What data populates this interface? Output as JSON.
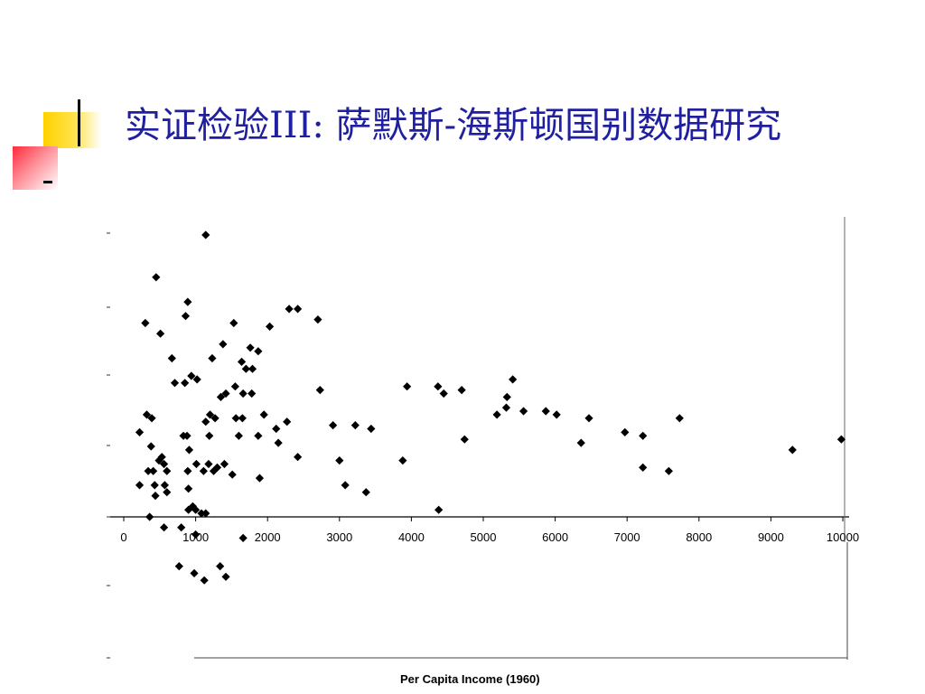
{
  "slide": {
    "title": "实证检验III: 萨默斯-海斯顿国别数据研究"
  },
  "chart_data": {
    "type": "scatter",
    "title": "",
    "xlabel": "Per Capita Income (1960)",
    "ylabel": "",
    "xlim": [
      0,
      10000
    ],
    "x_ticks": [
      0,
      1000,
      2000,
      3000,
      4000,
      5000,
      6000,
      7000,
      8000,
      9000,
      10000
    ],
    "x_tick_labels": [
      "0",
      "1000",
      "2000",
      "3000",
      "4000",
      "5000",
      "6000",
      "7000",
      "8000",
      "9000",
      "10000"
    ],
    "grid": false,
    "marker": "diamond",
    "points": [
      [
        1140,
        8.0
      ],
      [
        450,
        6.8
      ],
      [
        890,
        6.1
      ],
      [
        860,
        5.7
      ],
      [
        300,
        5.5
      ],
      [
        510,
        5.2
      ],
      [
        670,
        4.5
      ],
      [
        940,
        4.0
      ],
      [
        1020,
        3.9
      ],
      [
        710,
        3.8
      ],
      [
        850,
        3.8
      ],
      [
        1230,
        4.5
      ],
      [
        1380,
        4.9
      ],
      [
        1530,
        5.5
      ],
      [
        1640,
        4.4
      ],
      [
        1700,
        4.2
      ],
      [
        1790,
        4.2
      ],
      [
        1760,
        4.8
      ],
      [
        1870,
        4.7
      ],
      [
        2030,
        5.4
      ],
      [
        2300,
        5.9
      ],
      [
        2420,
        5.9
      ],
      [
        2700,
        5.6
      ],
      [
        1550,
        3.7
      ],
      [
        1350,
        3.4
      ],
      [
        1420,
        3.5
      ],
      [
        1660,
        3.5
      ],
      [
        1780,
        3.5
      ],
      [
        1560,
        2.8
      ],
      [
        1650,
        2.8
      ],
      [
        1200,
        2.9
      ],
      [
        1950,
        2.9
      ],
      [
        320,
        2.9
      ],
      [
        390,
        2.8
      ],
      [
        220,
        2.4
      ],
      [
        1140,
        2.7
      ],
      [
        1190,
        2.3
      ],
      [
        1270,
        2.8
      ],
      [
        1600,
        2.3
      ],
      [
        1870,
        2.3
      ],
      [
        2120,
        2.5
      ],
      [
        2150,
        2.1
      ],
      [
        2270,
        2.7
      ],
      [
        2420,
        1.7
      ],
      [
        1300,
        1.4
      ],
      [
        1400,
        1.5
      ],
      [
        1180,
        1.5
      ],
      [
        1110,
        1.3
      ],
      [
        910,
        1.9
      ],
      [
        830,
        2.3
      ],
      [
        880,
        2.3
      ],
      [
        380,
        2.0
      ],
      [
        490,
        1.6
      ],
      [
        560,
        1.5
      ],
      [
        600,
        1.3
      ],
      [
        340,
        1.3
      ],
      [
        410,
        1.3
      ],
      [
        530,
        1.7
      ],
      [
        1010,
        1.5
      ],
      [
        890,
        1.3
      ],
      [
        220,
        0.9
      ],
      [
        430,
        0.9
      ],
      [
        570,
        0.9
      ],
      [
        600,
        0.7
      ],
      [
        440,
        0.6
      ],
      [
        900,
        0.8
      ],
      [
        960,
        0.3
      ],
      [
        900,
        0.2
      ],
      [
        1000,
        0.2
      ],
      [
        1080,
        0.1
      ],
      [
        1140,
        0.1
      ],
      [
        360,
        0.0
      ],
      [
        560,
        -0.3
      ],
      [
        800,
        -0.3
      ],
      [
        1000,
        -0.5
      ],
      [
        1660,
        -0.6
      ],
      [
        770,
        -1.4
      ],
      [
        980,
        -1.6
      ],
      [
        1120,
        -1.8
      ],
      [
        1340,
        -1.4
      ],
      [
        1420,
        -1.7
      ],
      [
        1250,
        1.3
      ],
      [
        1890,
        1.1
      ],
      [
        1510,
        1.2
      ],
      [
        2730,
        3.6
      ],
      [
        2910,
        2.6
      ],
      [
        3220,
        2.6
      ],
      [
        3440,
        2.5
      ],
      [
        3000,
        1.6
      ],
      [
        3080,
        0.9
      ],
      [
        3370,
        0.7
      ],
      [
        3880,
        1.6
      ],
      [
        3940,
        3.7
      ],
      [
        4370,
        3.7
      ],
      [
        4450,
        3.5
      ],
      [
        4700,
        3.6
      ],
      [
        4740,
        2.2
      ],
      [
        4380,
        0.2
      ],
      [
        5190,
        2.9
      ],
      [
        5320,
        3.1
      ],
      [
        5330,
        3.4
      ],
      [
        5410,
        3.9
      ],
      [
        5560,
        3.0
      ],
      [
        5870,
        3.0
      ],
      [
        6020,
        2.9
      ],
      [
        6360,
        2.1
      ],
      [
        6470,
        2.8
      ],
      [
        6970,
        2.4
      ],
      [
        7220,
        2.3
      ],
      [
        7220,
        1.4
      ],
      [
        7580,
        1.3
      ],
      [
        7730,
        2.8
      ],
      [
        9300,
        1.9
      ],
      [
        9980,
        2.2
      ]
    ]
  }
}
